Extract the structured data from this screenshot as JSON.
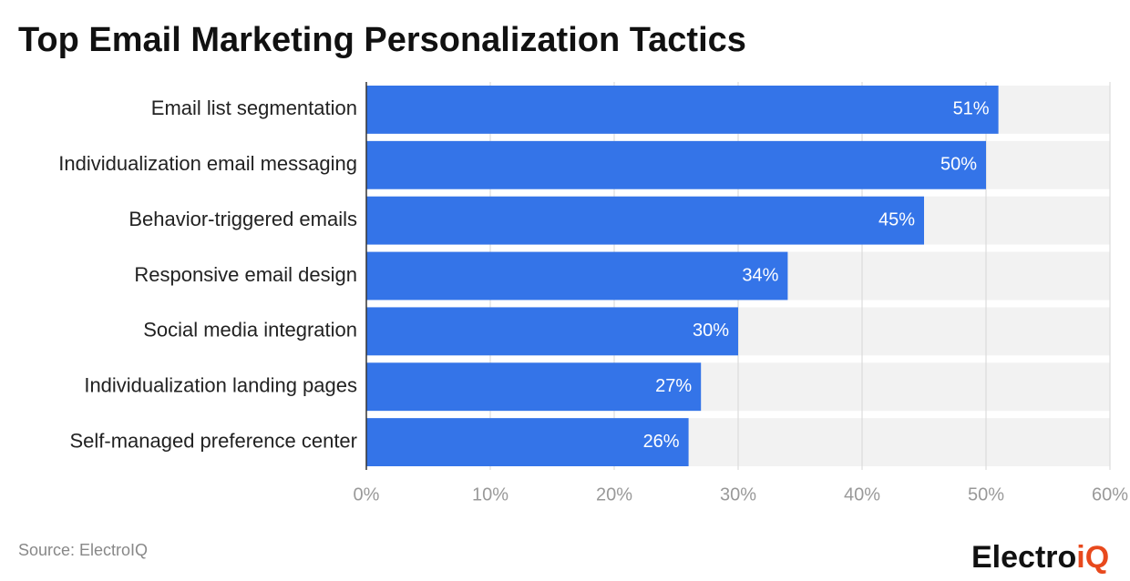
{
  "chart_data": {
    "type": "bar",
    "orientation": "horizontal",
    "title": "Top Email Marketing Personalization Tactics",
    "categories": [
      "Email list segmentation",
      "Individualization email messaging",
      "Behavior-triggered emails",
      "Responsive email design",
      "Social media integration",
      "Individualization landing pages",
      "Self-managed preference center"
    ],
    "values": [
      51,
      50,
      45,
      34,
      30,
      27,
      26
    ],
    "value_labels": [
      "51%",
      "50%",
      "45%",
      "34%",
      "30%",
      "27%",
      "26%"
    ],
    "color": "#3474e8",
    "xlim": [
      0,
      60
    ],
    "xticks": [
      {
        "value": 0,
        "label": "0%"
      },
      {
        "value": 10,
        "label": "10%"
      },
      {
        "value": 20,
        "label": "20%"
      },
      {
        "value": 30,
        "label": "30%"
      },
      {
        "value": 40,
        "label": "40%"
      },
      {
        "value": 50,
        "label": "50%"
      },
      {
        "value": 60,
        "label": "60%"
      }
    ],
    "grid": true,
    "source": "Source: ElectroIQ",
    "logo": "Electro",
    "logo_accent": "iQ"
  }
}
